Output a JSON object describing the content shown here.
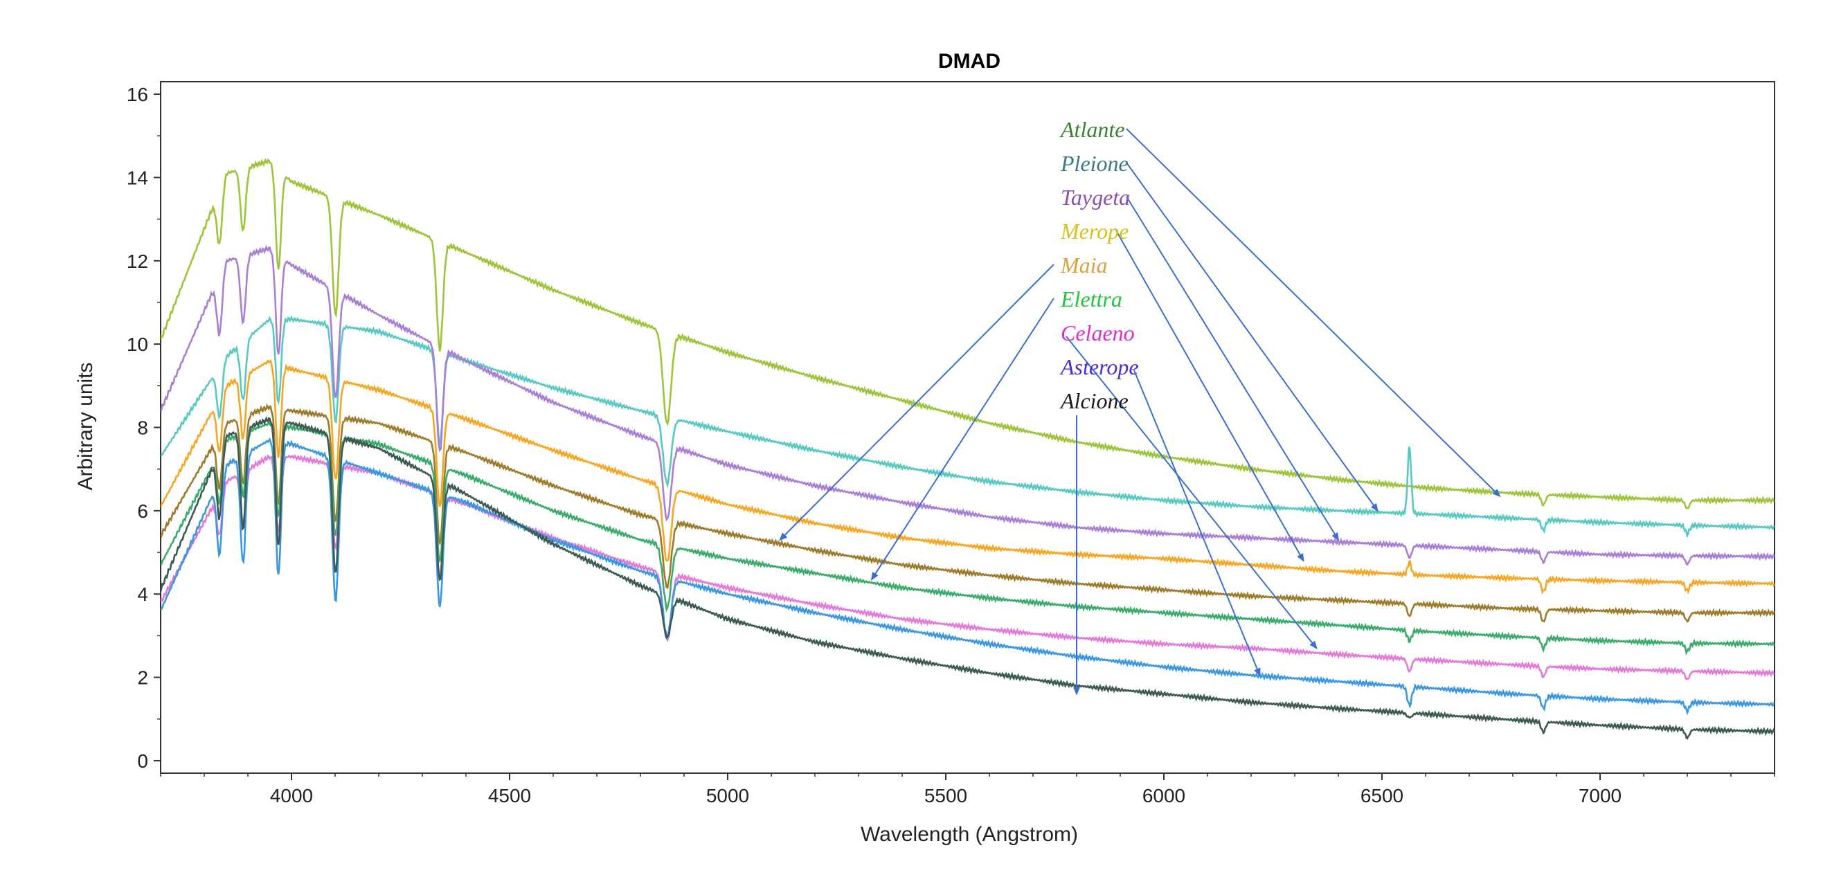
{
  "chart_data": {
    "type": "line",
    "title": "DMAD",
    "xlabel": "Wavelength (Angstrom)",
    "ylabel": "Arbitrary units",
    "xlim": [
      3700,
      7400
    ],
    "ylim": [
      -0.3,
      16.3
    ],
    "xticks": [
      4000,
      4500,
      5000,
      5500,
      6000,
      6500,
      7000
    ],
    "yticks": [
      0,
      2,
      4,
      6,
      8,
      10,
      12,
      14,
      16
    ],
    "grid": false,
    "legend_placement": "top-center",
    "legend": [
      "Atlante",
      "Pleione",
      "Taygeta",
      "Merope",
      "Maia",
      "Elettra",
      "Celaeno",
      "Asterope",
      "Alcione"
    ],
    "series": [
      {
        "name": "Atlante",
        "color": "#9dc43b",
        "legend_color": "#3e7f36",
        "arrow_target": [
          6770,
          6.35
        ],
        "continuum": [
          [
            3700,
            10.1
          ],
          [
            3850,
            14.1
          ],
          [
            3950,
            14.4
          ],
          [
            4000,
            13.9
          ],
          [
            4200,
            13.1
          ],
          [
            4400,
            12.2
          ],
          [
            4600,
            11.3
          ],
          [
            4800,
            10.5
          ],
          [
            5000,
            9.8
          ],
          [
            5200,
            9.2
          ],
          [
            5400,
            8.65
          ],
          [
            5600,
            8.1
          ],
          [
            5800,
            7.65
          ],
          [
            6000,
            7.3
          ],
          [
            6200,
            7.0
          ],
          [
            6400,
            6.75
          ],
          [
            6600,
            6.55
          ],
          [
            6800,
            6.42
          ],
          [
            7000,
            6.33
          ],
          [
            7200,
            6.25
          ],
          [
            7400,
            6.25
          ]
        ],
        "lines": [
          [
            3835,
            1.3
          ],
          [
            3889,
            1.5
          ],
          [
            3970,
            2.4
          ],
          [
            4101,
            2.8
          ],
          [
            4340,
            2.6
          ],
          [
            4861,
            2.2
          ],
          [
            6870,
            0.25
          ],
          [
            7200,
            0.2
          ]
        ],
        "emission": []
      },
      {
        "name": "Pleione",
        "color": "#57c9c1",
        "legend_color": "#3a7a82",
        "arrow_target": [
          6490,
          6.0
        ],
        "continuum": [
          [
            3700,
            7.3
          ],
          [
            3850,
            9.7
          ],
          [
            3950,
            10.6
          ],
          [
            4000,
            10.6
          ],
          [
            4200,
            10.3
          ],
          [
            4400,
            9.6
          ],
          [
            4600,
            8.95
          ],
          [
            4800,
            8.4
          ],
          [
            5000,
            7.9
          ],
          [
            5200,
            7.45
          ],
          [
            5400,
            7.05
          ],
          [
            5600,
            6.7
          ],
          [
            5800,
            6.45
          ],
          [
            6000,
            6.25
          ],
          [
            6200,
            6.1
          ],
          [
            6400,
            6.0
          ],
          [
            6600,
            5.92
          ],
          [
            6800,
            5.82
          ],
          [
            7000,
            5.72
          ],
          [
            7200,
            5.65
          ],
          [
            7400,
            5.6
          ]
        ],
        "lines": [
          [
            3835,
            1.2
          ],
          [
            3889,
            1.4
          ],
          [
            3970,
            2.0
          ],
          [
            4101,
            2.3
          ],
          [
            4340,
            2.2
          ],
          [
            4861,
            1.6
          ],
          [
            6870,
            0.25
          ],
          [
            7200,
            0.2
          ]
        ],
        "emission": [
          [
            6563,
            1.6
          ]
        ]
      },
      {
        "name": "Taygeta",
        "color": "#a87fd4",
        "legend_color": "#8a4fb0",
        "arrow_target": [
          6400,
          5.3
        ],
        "continuum": [
          [
            3700,
            8.4
          ],
          [
            3850,
            12.0
          ],
          [
            3950,
            12.3
          ],
          [
            4000,
            11.9
          ],
          [
            4200,
            10.7
          ],
          [
            4400,
            9.6
          ],
          [
            4600,
            8.6
          ],
          [
            4800,
            7.8
          ],
          [
            5000,
            7.1
          ],
          [
            5200,
            6.6
          ],
          [
            5400,
            6.2
          ],
          [
            5600,
            5.85
          ],
          [
            5800,
            5.6
          ],
          [
            6000,
            5.45
          ],
          [
            6200,
            5.35
          ],
          [
            6400,
            5.25
          ],
          [
            6600,
            5.15
          ],
          [
            6800,
            5.05
          ],
          [
            7000,
            4.95
          ],
          [
            7200,
            4.92
          ],
          [
            7400,
            4.9
          ]
        ],
        "lines": [
          [
            3835,
            1.4
          ],
          [
            3889,
            1.6
          ],
          [
            3970,
            2.4
          ],
          [
            4101,
            2.6
          ],
          [
            4340,
            2.5
          ],
          [
            4861,
            1.8
          ],
          [
            6563,
            0.3
          ],
          [
            6870,
            0.25
          ],
          [
            7200,
            0.2
          ]
        ],
        "emission": []
      },
      {
        "name": "Merope",
        "color": "#f5a623",
        "legend_color": "#d7c21a",
        "arrow_target": [
          6320,
          4.8
        ],
        "continuum": [
          [
            3700,
            6.1
          ],
          [
            3850,
            9.0
          ],
          [
            3950,
            9.6
          ],
          [
            4000,
            9.4
          ],
          [
            4200,
            8.9
          ],
          [
            4400,
            8.2
          ],
          [
            4600,
            7.45
          ],
          [
            4800,
            6.75
          ],
          [
            5000,
            6.15
          ],
          [
            5200,
            5.7
          ],
          [
            5400,
            5.35
          ],
          [
            5600,
            5.1
          ],
          [
            5800,
            4.95
          ],
          [
            6000,
            4.85
          ],
          [
            6200,
            4.7
          ],
          [
            6400,
            4.55
          ],
          [
            6600,
            4.45
          ],
          [
            6800,
            4.38
          ],
          [
            7000,
            4.32
          ],
          [
            7200,
            4.28
          ],
          [
            7400,
            4.25
          ]
        ],
        "lines": [
          [
            3835,
            1.3
          ],
          [
            3889,
            1.5
          ],
          [
            3970,
            2.2
          ],
          [
            4101,
            2.4
          ],
          [
            4340,
            2.3
          ],
          [
            4861,
            1.8
          ],
          [
            6870,
            0.3
          ],
          [
            7200,
            0.2
          ]
        ],
        "emission": [
          [
            6563,
            0.3
          ]
        ]
      },
      {
        "name": "Maia",
        "color": "#9c7b2a",
        "legend_color": "#d9a23a",
        "arrow_target": [
          5120,
          5.3
        ],
        "continuum": [
          [
            3700,
            5.4
          ],
          [
            3850,
            8.1
          ],
          [
            3950,
            8.5
          ],
          [
            4000,
            8.4
          ],
          [
            4200,
            8.1
          ],
          [
            4400,
            7.4
          ],
          [
            4600,
            6.6
          ],
          [
            4800,
            5.9
          ],
          [
            5000,
            5.45
          ],
          [
            5200,
            5.05
          ],
          [
            5400,
            4.7
          ],
          [
            5600,
            4.45
          ],
          [
            5800,
            4.25
          ],
          [
            6000,
            4.1
          ],
          [
            6200,
            3.95
          ],
          [
            6400,
            3.85
          ],
          [
            6600,
            3.75
          ],
          [
            6800,
            3.65
          ],
          [
            7000,
            3.6
          ],
          [
            7200,
            3.55
          ],
          [
            7400,
            3.55
          ]
        ],
        "lines": [
          [
            3835,
            1.3
          ],
          [
            3889,
            1.6
          ],
          [
            3970,
            2.3
          ],
          [
            4101,
            2.5
          ],
          [
            4340,
            2.4
          ],
          [
            4861,
            1.6
          ],
          [
            6563,
            0.3
          ],
          [
            6870,
            0.3
          ],
          [
            7200,
            0.2
          ]
        ],
        "emission": []
      },
      {
        "name": "Elettra",
        "color": "#3aab6b",
        "legend_color": "#22c442",
        "arrow_target": [
          5330,
          4.35
        ],
        "continuum": [
          [
            3700,
            4.7
          ],
          [
            3850,
            7.7
          ],
          [
            3950,
            8.1
          ],
          [
            4000,
            8.0
          ],
          [
            4200,
            7.6
          ],
          [
            4400,
            6.85
          ],
          [
            4600,
            6.0
          ],
          [
            4800,
            5.3
          ],
          [
            5000,
            4.85
          ],
          [
            5200,
            4.5
          ],
          [
            5400,
            4.15
          ],
          [
            5600,
            3.9
          ],
          [
            5800,
            3.7
          ],
          [
            6000,
            3.55
          ],
          [
            6200,
            3.4
          ],
          [
            6400,
            3.25
          ],
          [
            6600,
            3.1
          ],
          [
            6800,
            2.98
          ],
          [
            7000,
            2.88
          ],
          [
            7200,
            2.82
          ],
          [
            7400,
            2.8
          ]
        ],
        "lines": [
          [
            3835,
            1.2
          ],
          [
            3889,
            1.5
          ],
          [
            3970,
            2.2
          ],
          [
            4101,
            2.4
          ],
          [
            4340,
            2.3
          ],
          [
            4861,
            1.5
          ],
          [
            6563,
            0.25
          ],
          [
            6870,
            0.25
          ],
          [
            7200,
            0.2
          ]
        ],
        "emission": []
      },
      {
        "name": "Celaeno",
        "color": "#e27bd8",
        "legend_color": "#d92ed0",
        "arrow_target": [
          6350,
          2.7
        ],
        "continuum": [
          [
            3700,
            3.8
          ],
          [
            3850,
            6.7
          ],
          [
            3950,
            7.3
          ],
          [
            4000,
            7.3
          ],
          [
            4200,
            6.9
          ],
          [
            4400,
            6.15
          ],
          [
            4600,
            5.35
          ],
          [
            4800,
            4.65
          ],
          [
            5000,
            4.15
          ],
          [
            5200,
            3.75
          ],
          [
            5400,
            3.4
          ],
          [
            5600,
            3.15
          ],
          [
            5800,
            2.95
          ],
          [
            6000,
            2.8
          ],
          [
            6200,
            2.7
          ],
          [
            6400,
            2.55
          ],
          [
            6600,
            2.42
          ],
          [
            6800,
            2.3
          ],
          [
            7000,
            2.2
          ],
          [
            7200,
            2.15
          ],
          [
            7400,
            2.1
          ]
        ],
        "lines": [
          [
            3835,
            1.0
          ],
          [
            3889,
            1.2
          ],
          [
            3970,
            1.8
          ],
          [
            4101,
            2.0
          ],
          [
            4340,
            2.0
          ],
          [
            4861,
            1.6
          ],
          [
            6563,
            0.3
          ],
          [
            6870,
            0.25
          ],
          [
            7200,
            0.2
          ]
        ],
        "emission": []
      },
      {
        "name": "Asterope",
        "color": "#3a97e0",
        "legend_color": "#4a2bd8",
        "arrow_target": [
          6220,
          2.05
        ],
        "continuum": [
          [
            3700,
            3.6
          ],
          [
            3850,
            7.1
          ],
          [
            3950,
            7.7
          ],
          [
            4000,
            7.6
          ],
          [
            4200,
            6.9
          ],
          [
            4400,
            6.2
          ],
          [
            4600,
            5.3
          ],
          [
            4800,
            4.55
          ],
          [
            5000,
            4.0
          ],
          [
            5200,
            3.55
          ],
          [
            5400,
            3.15
          ],
          [
            5600,
            2.8
          ],
          [
            5800,
            2.5
          ],
          [
            6000,
            2.25
          ],
          [
            6200,
            2.05
          ],
          [
            6400,
            1.9
          ],
          [
            6600,
            1.75
          ],
          [
            6800,
            1.6
          ],
          [
            7000,
            1.48
          ],
          [
            7200,
            1.4
          ],
          [
            7400,
            1.35
          ]
        ],
        "lines": [
          [
            3835,
            1.8
          ],
          [
            3889,
            2.6
          ],
          [
            3970,
            3.2
          ],
          [
            4101,
            3.4
          ],
          [
            4340,
            2.7
          ],
          [
            4861,
            1.4
          ],
          [
            6563,
            0.45
          ],
          [
            6870,
            0.3
          ],
          [
            7200,
            0.2
          ]
        ],
        "emission": []
      },
      {
        "name": "Alcione",
        "color": "#3d5a52",
        "legend_color": "#1b1b1b",
        "arrow_target": [
          5800,
          1.6
        ],
        "continuum": [
          [
            3700,
            4.1
          ],
          [
            3850,
            7.8
          ],
          [
            3950,
            8.2
          ],
          [
            4000,
            8.1
          ],
          [
            4200,
            7.5
          ],
          [
            4400,
            6.4
          ],
          [
            4600,
            5.2
          ],
          [
            4800,
            4.2
          ],
          [
            5000,
            3.4
          ],
          [
            5200,
            2.85
          ],
          [
            5400,
            2.45
          ],
          [
            5600,
            2.1
          ],
          [
            5800,
            1.8
          ],
          [
            6000,
            1.6
          ],
          [
            6200,
            1.4
          ],
          [
            6400,
            1.25
          ],
          [
            6600,
            1.12
          ],
          [
            6800,
            0.98
          ],
          [
            7000,
            0.85
          ],
          [
            7200,
            0.75
          ],
          [
            7400,
            0.7
          ]
        ],
        "lines": [
          [
            3835,
            1.6
          ],
          [
            3889,
            2.4
          ],
          [
            3970,
            3.0
          ],
          [
            4101,
            3.3
          ],
          [
            4340,
            2.4
          ],
          [
            4861,
            1.0
          ],
          [
            6563,
            0.25
          ],
          [
            6870,
            0.25
          ],
          [
            7200,
            0.2
          ]
        ],
        "emission": [
          [
            6563,
            0.15
          ]
        ]
      }
    ]
  }
}
